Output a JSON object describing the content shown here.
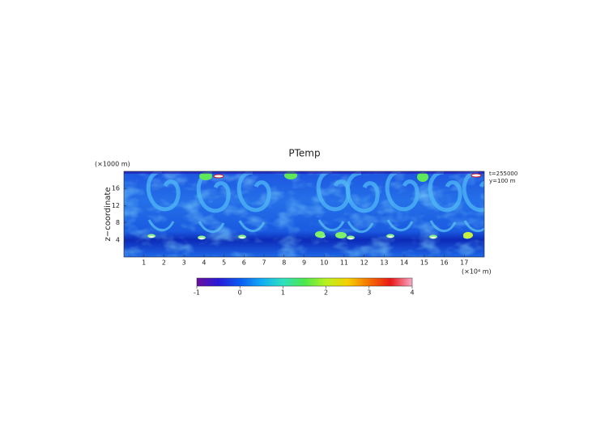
{
  "chart_data": {
    "type": "heatmap",
    "title": "PTemp",
    "y_label": "z−coordinate",
    "y_unit": "(×1000 m)",
    "x_unit": "(×10⁴ m)",
    "annotations": [
      "t=255000",
      "y=100 m"
    ],
    "xlim": [
      0,
      18
    ],
    "xticks": [
      1,
      2,
      3,
      4,
      5,
      6,
      7,
      8,
      9,
      10,
      11,
      12,
      13,
      14,
      15,
      16,
      17
    ],
    "ylim": [
      0,
      20
    ],
    "yticks": [
      4,
      8,
      12,
      16
    ],
    "colorbar": {
      "clim": [
        -1,
        4
      ],
      "ticks": [
        -1,
        0,
        1,
        2,
        3,
        4
      ]
    }
  }
}
